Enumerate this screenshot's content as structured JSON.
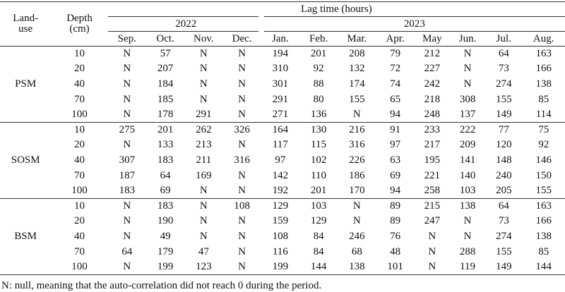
{
  "header": {
    "land_use": "Land-use",
    "depth": "Depth (cm)",
    "lag_time": "Lag time (hours)",
    "years": [
      "2022",
      "2023"
    ],
    "months": [
      "Sep.",
      "Oct.",
      "Nov.",
      "Dec.",
      "Jan.",
      "Feb.",
      "Mar.",
      "Apr.",
      "May",
      "Jun.",
      "Jul.",
      "Aug."
    ]
  },
  "groups": [
    {
      "land_use": "PSM",
      "rows": [
        {
          "depth": 10,
          "values": [
            "N",
            57,
            "N",
            "N",
            194,
            201,
            208,
            79,
            212,
            "N",
            64,
            163
          ]
        },
        {
          "depth": 20,
          "values": [
            "N",
            207,
            "N",
            "N",
            310,
            92,
            132,
            72,
            227,
            "N",
            73,
            166
          ]
        },
        {
          "depth": 40,
          "values": [
            "N",
            184,
            "N",
            "N",
            301,
            88,
            174,
            74,
            242,
            "N",
            274,
            138
          ]
        },
        {
          "depth": 70,
          "values": [
            "N",
            185,
            "N",
            "N",
            291,
            80,
            155,
            65,
            218,
            308,
            155,
            85
          ]
        },
        {
          "depth": 100,
          "values": [
            "N",
            178,
            291,
            "N",
            271,
            136,
            "N",
            94,
            248,
            137,
            149,
            114
          ]
        }
      ]
    },
    {
      "land_use": "SOSM",
      "rows": [
        {
          "depth": 10,
          "values": [
            275,
            201,
            262,
            326,
            164,
            130,
            216,
            91,
            233,
            222,
            77,
            75
          ]
        },
        {
          "depth": 20,
          "values": [
            "N",
            133,
            213,
            "N",
            117,
            115,
            316,
            97,
            217,
            209,
            120,
            92
          ]
        },
        {
          "depth": 40,
          "values": [
            307,
            183,
            211,
            316,
            97,
            102,
            226,
            63,
            195,
            141,
            148,
            146
          ]
        },
        {
          "depth": 70,
          "values": [
            187,
            64,
            169,
            "N",
            142,
            110,
            186,
            69,
            221,
            140,
            240,
            150
          ]
        },
        {
          "depth": 100,
          "values": [
            183,
            69,
            "N",
            "N",
            192,
            201,
            170,
            94,
            258,
            103,
            205,
            155
          ]
        }
      ]
    },
    {
      "land_use": "BSM",
      "rows": [
        {
          "depth": 10,
          "values": [
            "N",
            183,
            "N",
            108,
            129,
            103,
            "N",
            89,
            215,
            138,
            64,
            163
          ]
        },
        {
          "depth": 20,
          "values": [
            "N",
            190,
            "N",
            "N",
            159,
            129,
            "N",
            89,
            247,
            "N",
            73,
            166
          ]
        },
        {
          "depth": 40,
          "values": [
            "N",
            49,
            "N",
            "N",
            108,
            84,
            246,
            76,
            "N",
            "N",
            274,
            138
          ]
        },
        {
          "depth": 70,
          "values": [
            64,
            179,
            47,
            "N",
            116,
            84,
            68,
            48,
            "N",
            288,
            155,
            85
          ]
        },
        {
          "depth": 100,
          "values": [
            "N",
            199,
            123,
            "N",
            199,
            144,
            138,
            101,
            "N",
            119,
            149,
            144
          ]
        }
      ]
    }
  ],
  "footnote": "N: null, meaning that the auto-correlation did not reach 0 during the period."
}
